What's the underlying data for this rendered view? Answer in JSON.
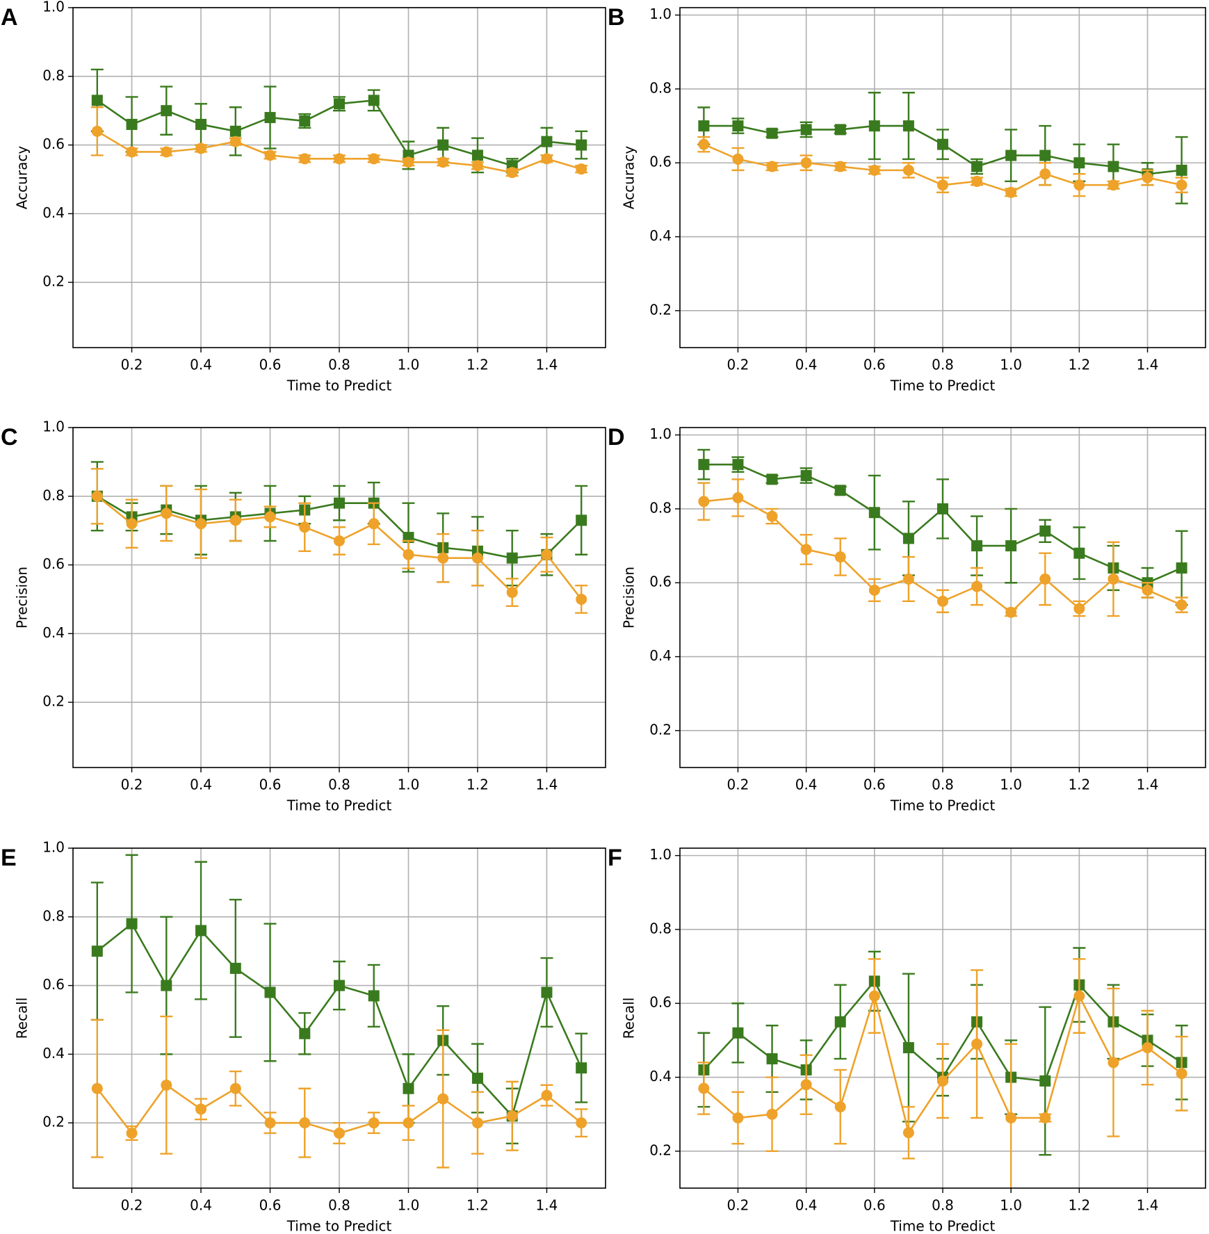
{
  "chart_data": [
    {
      "type": "line",
      "panel_label": "A",
      "xlabel": "Time to Predict",
      "ylabel": "Accuracy",
      "x": [
        0.1,
        0.2,
        0.3,
        0.4,
        0.5,
        0.6,
        0.7,
        0.8,
        0.9,
        1.0,
        1.1,
        1.2,
        1.3,
        1.4,
        1.5
      ],
      "series": [
        {
          "color": "#3a7a1e",
          "marker": "square",
          "values": [
            0.73,
            0.66,
            0.7,
            0.66,
            0.64,
            0.68,
            0.67,
            0.72,
            0.73,
            0.57,
            0.6,
            0.57,
            0.54,
            0.61,
            0.6
          ],
          "errors": [
            0.09,
            0.08,
            0.07,
            0.06,
            0.07,
            0.09,
            0.02,
            0.02,
            0.03,
            0.04,
            0.05,
            0.05,
            0.02,
            0.04,
            0.04
          ]
        },
        {
          "color": "#eea22a",
          "marker": "circle",
          "values": [
            0.64,
            0.58,
            0.58,
            0.59,
            0.61,
            0.57,
            0.56,
            0.56,
            0.56,
            0.55,
            0.55,
            0.54,
            0.52,
            0.56,
            0.53
          ],
          "errors": [
            0.07,
            0.01,
            0.01,
            0.01,
            0.01,
            0.01,
            0.01,
            0.01,
            0.01,
            0.01,
            0.01,
            0.01,
            0.01,
            0.01,
            0.01
          ]
        }
      ],
      "xlim": [
        0.03,
        1.57
      ],
      "ylim": [
        0.01,
        1.0
      ],
      "xticks": [
        0.2,
        0.4,
        0.6,
        0.8,
        {
          "value": 1,
          "label": "1.0"
        },
        1.2,
        1.4
      ],
      "yticks": [
        0.2,
        0.4,
        0.6,
        0.8,
        {
          "value": 1,
          "label": "1.0"
        }
      ],
      "grid": true
    },
    {
      "type": "line",
      "panel_label": "B",
      "xlabel": "Time to Predict",
      "ylabel": "Accuracy",
      "x": [
        0.1,
        0.2,
        0.3,
        0.4,
        0.5,
        0.6,
        0.7,
        0.8,
        0.9,
        1.0,
        1.1,
        1.2,
        1.3,
        1.4,
        1.5
      ],
      "series": [
        {
          "color": "#3a7a1e",
          "marker": "square",
          "values": [
            0.7,
            0.7,
            0.68,
            0.69,
            0.69,
            0.7,
            0.7,
            0.65,
            0.59,
            0.62,
            0.62,
            0.6,
            0.59,
            0.57,
            0.58
          ],
          "errors": [
            0.05,
            0.02,
            0.01,
            0.02,
            0.01,
            0.09,
            0.09,
            0.04,
            0.02,
            0.07,
            0.08,
            0.05,
            0.06,
            0.03,
            0.09
          ]
        },
        {
          "color": "#eea22a",
          "marker": "circle",
          "values": [
            0.65,
            0.61,
            0.59,
            0.6,
            0.59,
            0.58,
            0.58,
            0.54,
            0.55,
            0.52,
            0.57,
            0.54,
            0.54,
            0.56,
            0.54
          ],
          "errors": [
            0.02,
            0.03,
            0.01,
            0.02,
            0.01,
            0.01,
            0.02,
            0.02,
            0.01,
            0.01,
            0.03,
            0.03,
            0.01,
            0.02,
            0.02
          ]
        }
      ],
      "xlim": [
        0.03,
        1.57
      ],
      "ylim": [
        0.1,
        1.02
      ],
      "xticks": [
        0.2,
        0.4,
        0.6,
        0.8,
        {
          "value": 1,
          "label": "1.0"
        },
        1.2,
        1.4
      ],
      "yticks": [
        0.2,
        0.4,
        0.6,
        0.8,
        {
          "value": 1,
          "label": "1.0"
        }
      ],
      "grid": true
    },
    {
      "type": "line",
      "panel_label": "C",
      "xlabel": "Time to Predict",
      "ylabel": "Precision",
      "x": [
        0.1,
        0.2,
        0.3,
        0.4,
        0.5,
        0.6,
        0.7,
        0.8,
        0.9,
        1.0,
        1.1,
        1.2,
        1.3,
        1.4,
        1.5
      ],
      "series": [
        {
          "color": "#3a7a1e",
          "marker": "square",
          "values": [
            0.8,
            0.74,
            0.76,
            0.73,
            0.74,
            0.75,
            0.76,
            0.78,
            0.78,
            0.68,
            0.65,
            0.64,
            0.62,
            0.63,
            0.73
          ],
          "errors": [
            0.1,
            0.04,
            0.07,
            0.1,
            0.07,
            0.08,
            0.04,
            0.05,
            0.06,
            0.1,
            0.1,
            0.1,
            0.08,
            0.06,
            0.1
          ]
        },
        {
          "color": "#eea22a",
          "marker": "circle",
          "values": [
            0.8,
            0.72,
            0.75,
            0.72,
            0.73,
            0.74,
            0.71,
            0.67,
            0.72,
            0.63,
            0.62,
            0.62,
            0.52,
            0.63,
            0.5
          ],
          "errors": [
            0.08,
            0.07,
            0.08,
            0.1,
            0.06,
            0.03,
            0.07,
            0.04,
            0.06,
            0.04,
            0.07,
            0.08,
            0.04,
            0.05,
            0.04
          ]
        }
      ],
      "xlim": [
        0.03,
        1.57
      ],
      "ylim": [
        0.01,
        1.0
      ],
      "xticks": [
        0.2,
        0.4,
        0.6,
        0.8,
        {
          "value": 1,
          "label": "1.0"
        },
        1.2,
        1.4
      ],
      "yticks": [
        0.2,
        0.4,
        0.6,
        0.8,
        {
          "value": 1,
          "label": "1.0"
        }
      ],
      "grid": true
    },
    {
      "type": "line",
      "panel_label": "D",
      "xlabel": "Time to Predict",
      "ylabel": "Precision",
      "x": [
        0.1,
        0.2,
        0.3,
        0.4,
        0.5,
        0.6,
        0.7,
        0.8,
        0.9,
        1.0,
        1.1,
        1.2,
        1.3,
        1.4,
        1.5
      ],
      "series": [
        {
          "color": "#3a7a1e",
          "marker": "square",
          "values": [
            0.92,
            0.92,
            0.88,
            0.89,
            0.85,
            0.79,
            0.72,
            0.8,
            0.7,
            0.7,
            0.74,
            0.68,
            0.64,
            0.6,
            0.64
          ],
          "errors": [
            0.04,
            0.02,
            0.01,
            0.02,
            0.01,
            0.1,
            0.1,
            0.08,
            0.08,
            0.1,
            0.03,
            0.07,
            0.06,
            0.04,
            0.1
          ]
        },
        {
          "color": "#eea22a",
          "marker": "circle",
          "values": [
            0.82,
            0.83,
            0.78,
            0.69,
            0.67,
            0.58,
            0.61,
            0.55,
            0.59,
            0.52,
            0.61,
            0.53,
            0.61,
            0.58,
            0.54
          ],
          "errors": [
            0.05,
            0.05,
            0.02,
            0.04,
            0.05,
            0.03,
            0.06,
            0.03,
            0.05,
            0.01,
            0.07,
            0.02,
            0.1,
            0.02,
            0.02
          ]
        }
      ],
      "xlim": [
        0.03,
        1.57
      ],
      "ylim": [
        0.1,
        1.02
      ],
      "xticks": [
        0.2,
        0.4,
        0.6,
        0.8,
        {
          "value": 1,
          "label": "1.0"
        },
        1.2,
        1.4
      ],
      "yticks": [
        0.2,
        0.4,
        0.6,
        0.8,
        {
          "value": 1,
          "label": "1.0"
        }
      ],
      "grid": true
    },
    {
      "type": "line",
      "panel_label": "E",
      "xlabel": "Time to Predict",
      "ylabel": "Recall",
      "x": [
        0.1,
        0.2,
        0.3,
        0.4,
        0.5,
        0.6,
        0.7,
        0.8,
        0.9,
        1.0,
        1.1,
        1.2,
        1.3,
        1.4,
        1.5
      ],
      "series": [
        {
          "color": "#3a7a1e",
          "marker": "square",
          "values": [
            0.7,
            0.78,
            0.6,
            0.76,
            0.65,
            0.58,
            0.46,
            0.6,
            0.57,
            0.3,
            0.44,
            0.33,
            0.22,
            0.58,
            0.36
          ],
          "errors": [
            0.2,
            0.2,
            0.2,
            0.2,
            0.2,
            0.2,
            0.06,
            0.07,
            0.09,
            0.1,
            0.1,
            0.1,
            0.08,
            0.1,
            0.1
          ]
        },
        {
          "color": "#eea22a",
          "marker": "circle",
          "values": [
            0.3,
            0.17,
            0.31,
            0.24,
            0.3,
            0.2,
            0.2,
            0.17,
            0.2,
            0.2,
            0.27,
            0.2,
            0.22,
            0.28,
            0.2
          ],
          "errors": [
            0.2,
            0.02,
            0.2,
            0.03,
            0.05,
            0.03,
            0.1,
            0.03,
            0.03,
            0.05,
            0.2,
            0.09,
            0.1,
            0.03,
            0.04
          ]
        }
      ],
      "xlim": [
        0.03,
        1.57
      ],
      "ylim": [
        0.01,
        1.0
      ],
      "xticks": [
        0.2,
        0.4,
        0.6,
        0.8,
        {
          "value": 1,
          "label": "1.0"
        },
        1.2,
        1.4
      ],
      "yticks": [
        0.2,
        0.4,
        0.6,
        0.8,
        {
          "value": 1,
          "label": "1.0"
        }
      ],
      "grid": true
    },
    {
      "type": "line",
      "panel_label": "F",
      "xlabel": "Time to Predict",
      "ylabel": "Recall",
      "x": [
        0.1,
        0.2,
        0.3,
        0.4,
        0.5,
        0.6,
        0.7,
        0.8,
        0.9,
        1.0,
        1.1,
        1.2,
        1.3,
        1.4,
        1.5
      ],
      "series": [
        {
          "color": "#3a7a1e",
          "marker": "square",
          "values": [
            0.42,
            0.52,
            0.45,
            0.42,
            0.55,
            0.66,
            0.48,
            0.4,
            0.55,
            0.4,
            0.39,
            0.65,
            0.55,
            0.5,
            0.44
          ],
          "errors": [
            0.1,
            0.08,
            0.09,
            0.08,
            0.1,
            0.08,
            0.2,
            0.05,
            0.1,
            0.1,
            0.2,
            0.1,
            0.1,
            0.07,
            0.1
          ]
        },
        {
          "color": "#eea22a",
          "marker": "circle",
          "values": [
            0.37,
            0.29,
            0.3,
            0.38,
            0.32,
            0.62,
            0.25,
            0.39,
            0.49,
            0.29,
            0.29,
            0.62,
            0.44,
            0.48,
            0.41
          ],
          "errors": [
            0.07,
            0.07,
            0.1,
            0.08,
            0.1,
            0.1,
            0.07,
            0.1,
            0.2,
            0.2,
            0.01,
            0.1,
            0.2,
            0.1,
            0.1
          ]
        }
      ],
      "xlim": [
        0.03,
        1.57
      ],
      "ylim": [
        0.1,
        1.02
      ],
      "xticks": [
        0.2,
        0.4,
        0.6,
        0.8,
        {
          "value": 1,
          "label": "1.0"
        },
        1.2,
        1.4
      ],
      "yticks": [
        0.2,
        0.4,
        0.6,
        0.8,
        {
          "value": 1,
          "label": "1.0"
        }
      ],
      "grid": true
    }
  ]
}
